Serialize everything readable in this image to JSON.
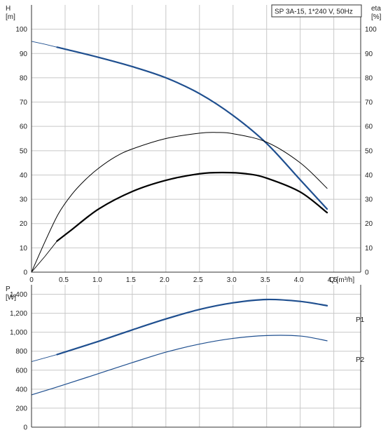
{
  "chart_data": [
    {
      "type": "line",
      "title": "SP 3A-15, 1*240 V, 50Hz",
      "ylabel": "H",
      "yunit": "[m]",
      "y2label": "eta",
      "y2unit": "[%]",
      "xlabel": "Q [m³/h]",
      "xlim": [
        0,
        4.9
      ],
      "ylim": [
        0,
        110
      ],
      "y2lim": [
        0,
        110
      ],
      "grid": true,
      "xticks": [
        "0",
        "0.5",
        "1.0",
        "1.5",
        "2.0",
        "2.5",
        "3.0",
        "3.5",
        "4.0",
        "4.5"
      ],
      "yticks": [
        "0",
        "10",
        "20",
        "30",
        "40",
        "50",
        "60",
        "70",
        "80",
        "90",
        "100"
      ],
      "y2ticks": [
        "0",
        "10",
        "20",
        "30",
        "40",
        "50",
        "60",
        "70",
        "80",
        "90",
        "100"
      ],
      "series": [
        {
          "name": "",
          "axis": "H",
          "color": "#1f4f8f",
          "x": [
            0,
            0.2,
            0.38,
            0.5,
            1.0,
            1.5,
            2.0,
            2.5,
            3.0,
            3.5,
            4.0,
            4.4
          ],
          "y": [
            95.0,
            93.8,
            92.6,
            91.8,
            88.4,
            84.6,
            80.0,
            73.5,
            64.5,
            53.0,
            38.0,
            26.0
          ],
          "dashed_to": 0.38
        },
        {
          "name": "",
          "axis": "eta",
          "color": "#000000",
          "x": [
            0,
            0.2,
            0.4,
            0.6,
            0.8,
            1.0,
            1.25,
            1.5,
            2.0,
            2.5,
            2.75,
            3.0,
            3.5,
            4.0,
            4.4
          ],
          "y": [
            0,
            12.5,
            24.0,
            32.0,
            38.0,
            42.8,
            47.5,
            50.7,
            55.0,
            57.2,
            57.5,
            57.0,
            53.5,
            45.0,
            34.5
          ]
        },
        {
          "name": "",
          "axis": "eta",
          "color": "#000000",
          "x": [
            0,
            0.2,
            0.38,
            0.6,
            1.0,
            1.5,
            2.0,
            2.5,
            2.85,
            3.2,
            3.5,
            4.0,
            4.4
          ],
          "y": [
            0,
            6.5,
            12.8,
            17.5,
            26.0,
            33.2,
            37.8,
            40.5,
            41.0,
            40.5,
            38.7,
            33.0,
            24.5
          ],
          "dashed_to": 0.38
        }
      ]
    },
    {
      "type": "line",
      "ylabel": "P",
      "yunit": "[W]",
      "xlim": [
        0,
        4.9
      ],
      "ylim": [
        0,
        1500
      ],
      "grid": true,
      "yticks": [
        "0",
        "200",
        "400",
        "600",
        "800",
        "1,000",
        "1,200",
        "1,400"
      ],
      "series": [
        {
          "name": "P1",
          "color": "#1f4f8f",
          "x": [
            0,
            0.38,
            0.5,
            1.0,
            1.5,
            2.0,
            2.5,
            3.0,
            3.5,
            4.0,
            4.4
          ],
          "y": [
            690,
            765,
            792,
            905,
            1025,
            1140,
            1240,
            1310,
            1345,
            1325,
            1280
          ],
          "dashed_to": 0.38
        },
        {
          "name": "P2",
          "color": "#1f4f8f",
          "x": [
            0,
            0.5,
            1.0,
            1.5,
            2.0,
            2.5,
            3.0,
            3.5,
            4.0,
            4.4
          ],
          "y": [
            340,
            450,
            565,
            680,
            790,
            875,
            935,
            965,
            960,
            910
          ]
        }
      ]
    }
  ]
}
